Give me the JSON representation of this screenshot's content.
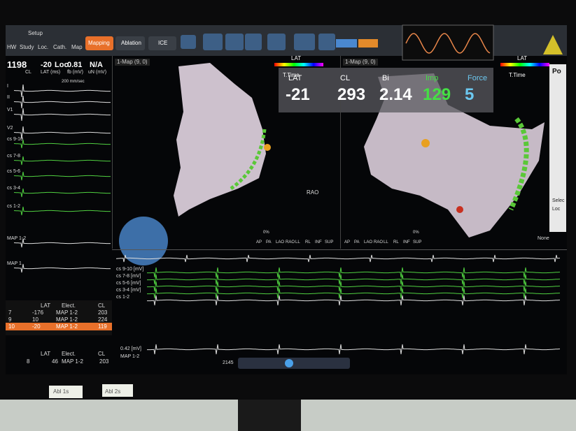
{
  "toolbar": {
    "title": "Setup",
    "tabs": [
      "HW",
      "Study",
      "Loc.",
      "Cath.",
      "Map"
    ],
    "modes": [
      "Mapping",
      "Ablation",
      "ICE"
    ]
  },
  "readouts": {
    "values": [
      "1198",
      "-20",
      "Loc",
      "0.81",
      "N/A"
    ],
    "labels": [
      "CL",
      "LAT (ms)",
      "fb (mV)",
      "uN (mV)"
    ]
  },
  "sweep": "200 mm/sec",
  "signals": [
    "I",
    "II",
    "V1",
    "V2",
    "cs 9-10",
    "cs 7-8",
    "cs 5-6",
    "cs 3-4",
    "cs 1-2",
    "MAP 1-2",
    "MAP 1"
  ],
  "maps": [
    {
      "title": "1-Map (9, 0)",
      "scale": "LAT",
      "scale_sub": "T.Time"
    },
    {
      "title": "1-Map (9, 0)",
      "scale": "LAT",
      "scale_sub": "T.Time"
    }
  ],
  "metrics": {
    "headers": [
      "LAT",
      "CL",
      "Bi",
      "Imp",
      "Force"
    ],
    "values": [
      "-21",
      "293",
      "2.14",
      "129",
      "5"
    ]
  },
  "views": [
    "AP",
    "PA",
    "LAO",
    "RAO",
    "LL",
    "RL",
    "INF",
    "SUP"
  ],
  "view_label": "RAO",
  "percent": "0%",
  "points_table": {
    "headers": [
      "LAT",
      "Elect.",
      "CL"
    ],
    "rows": [
      [
        "7",
        "-176",
        "MAP 1-2",
        "203"
      ],
      [
        "9",
        "10",
        "MAP 1-2",
        "224"
      ],
      [
        "10",
        "-20",
        "MAP 1-2",
        "119"
      ]
    ]
  },
  "selected_point": {
    "headers": [
      "LAT",
      "Elect.",
      "CL"
    ],
    "row": [
      "8",
      "46",
      "MAP 1-2",
      "203"
    ]
  },
  "lower_labels": [
    "cs 9-10 [mV]",
    "cs 7-8 [mV]",
    "cs 5-6 [mV]",
    "cs 3-4 [mV]",
    "cs 1-2"
  ],
  "map_signal": {
    "scale": "0.42 [mV]",
    "label": "MAP 1-2"
  },
  "time": "2145",
  "right_panel": {
    "title": "Po",
    "items": [
      "Selec",
      "Loc"
    ],
    "dropdown": "None"
  },
  "notes": [
    "Abl 1s",
    "Abl 2s"
  ]
}
